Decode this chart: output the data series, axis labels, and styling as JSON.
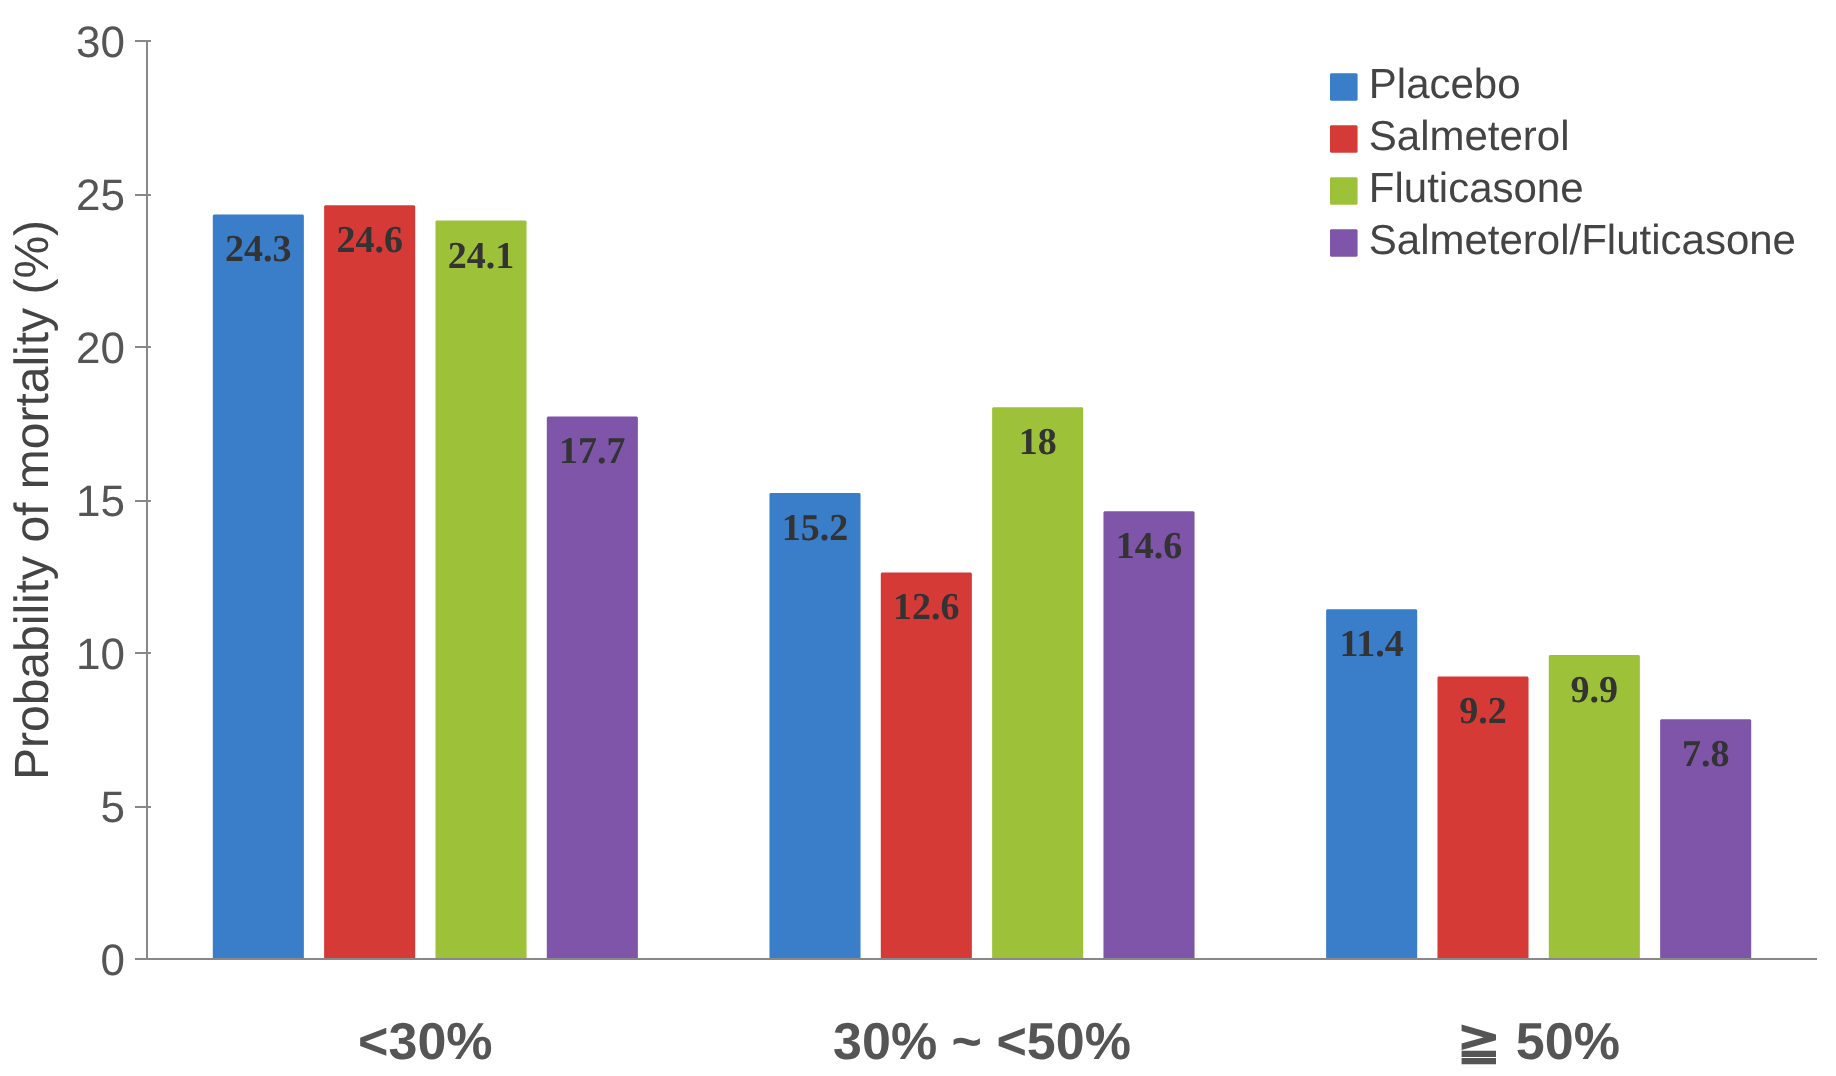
{
  "chart_data": {
    "type": "bar",
    "ylabel": "Probability of mortality (%)",
    "categories": [
      "<30%",
      "30% ~ <50%",
      "≧ 50%"
    ],
    "series": [
      {
        "name": "Placebo",
        "color": "#3a7dc9",
        "values": [
          24.3,
          15.2,
          11.4
        ]
      },
      {
        "name": "Salmeterol",
        "color": "#d63a36",
        "values": [
          24.6,
          12.6,
          9.2
        ]
      },
      {
        "name": "Fluticasone",
        "color": "#9dc23a",
        "values": [
          24.1,
          18,
          9.9
        ]
      },
      {
        "name": "Salmeterol/Fluticasone",
        "color": "#7e55a8",
        "values": [
          17.7,
          14.6,
          7.8
        ]
      }
    ],
    "ylim": [
      0,
      30
    ],
    "yticks": [
      0,
      5,
      10,
      15,
      20,
      25,
      30
    ],
    "grid": false,
    "legend": "top right",
    "data_labels": true
  }
}
